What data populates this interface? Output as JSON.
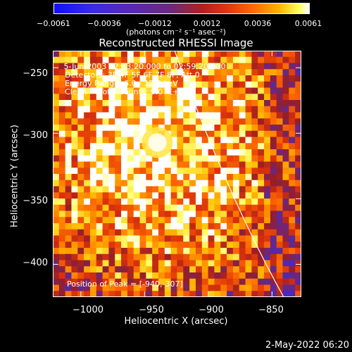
{
  "chart_data": {
    "type": "heatmap",
    "title": "Reconstructed RHESSI Image",
    "xlabel": "Heliocentric X (arcsec)",
    "ylabel": "Heliocentric Y (arcsec)",
    "xlim": [
      -1022,
      -827
    ],
    "ylim": [
      -425,
      -237
    ],
    "x_ticks": [
      -1000,
      -950,
      -900,
      -850
    ],
    "x_tick_labels": [
      "−1000",
      "−950",
      "−900",
      "−850"
    ],
    "y_ticks": [
      -250,
      -300,
      -350,
      -400
    ],
    "y_tick_labels": [
      "−250",
      "−300",
      "−350",
      "−400"
    ],
    "colorbar": {
      "min": -0.0061,
      "max": 0.0061,
      "tick_labels": [
        "−0.0061",
        "−0.0036",
        "−0.0012",
        "0.0012",
        "0.0036",
        "0.0061"
      ],
      "units": "(photons cm⁻² s⁻¹ asec⁻²)"
    },
    "annotations": [
      " 5-Jun-2003 02:53:20.000 to 02:59:20.000",
      "Detectors: 3F 4F 5F 6F 7F 8F, Att 0",
      "Energy Range: 6.0 - 12.0 keV",
      "Clean     Total counts: 9.07E+03"
    ],
    "peak_label": "Position of Peak = [-940,-307]",
    "peak": [
      -940,
      -307
    ]
  },
  "footer": {
    "date": "2-May-2022 06:20"
  }
}
